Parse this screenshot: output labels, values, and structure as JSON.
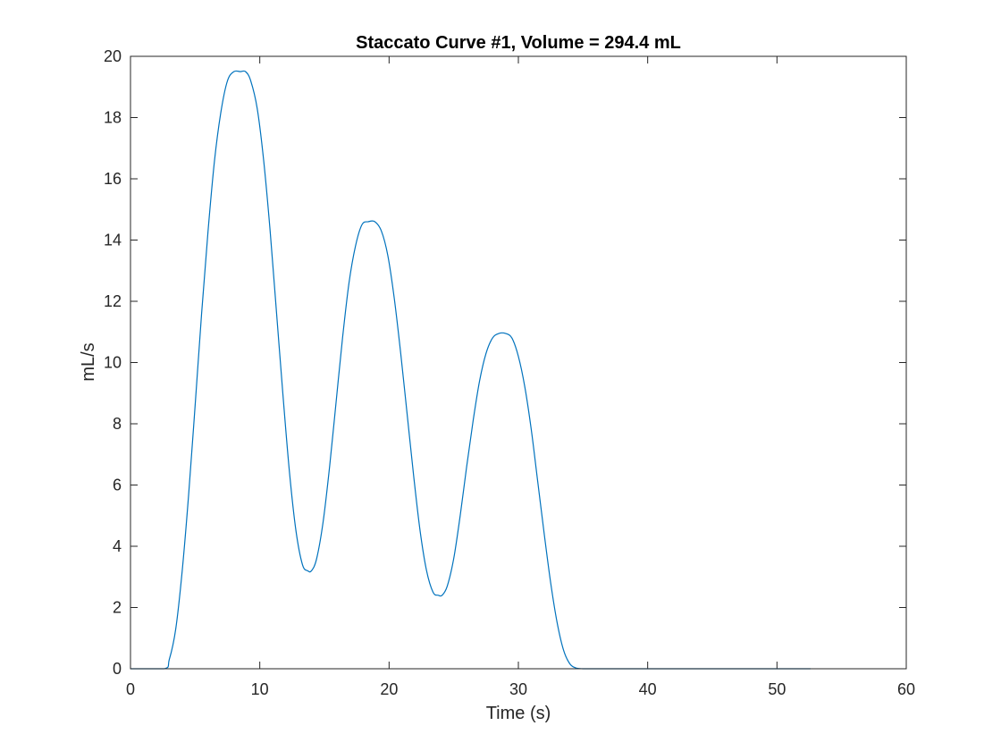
{
  "chart_data": {
    "type": "line",
    "title": "Staccato Curve #1, Volume = 294.4 mL",
    "xlabel": "Time (s)",
    "ylabel": "mL/s",
    "xlim": [
      0,
      60
    ],
    "ylim": [
      0,
      20
    ],
    "xticks": [
      "0",
      "10",
      "20",
      "30",
      "40",
      "50",
      "60"
    ],
    "yticks": [
      "0",
      "2",
      "4",
      "6",
      "8",
      "10",
      "12",
      "14",
      "16",
      "18",
      "20"
    ],
    "grid": false,
    "legend": "none",
    "line_color": "#0072bd",
    "series": [
      {
        "x": [
          0,
          2.6,
          3.0,
          3.5,
          4.0,
          4.5,
          5.0,
          5.5,
          6.0,
          6.5,
          7.0,
          7.5,
          8.0,
          8.5,
          8.9,
          9.3,
          9.8,
          10.3,
          10.8,
          11.3,
          11.8,
          12.3,
          12.8,
          13.3,
          13.7,
          14.0,
          14.4,
          14.9,
          15.4,
          15.9,
          16.4,
          16.9,
          17.4,
          17.9,
          18.4,
          18.9,
          19.4,
          19.9,
          20.4,
          20.9,
          21.4,
          21.9,
          22.4,
          22.9,
          23.4,
          23.8,
          24.1,
          24.5,
          25.0,
          25.5,
          26.0,
          26.5,
          27.0,
          27.5,
          28.0,
          28.5,
          29.0,
          29.5,
          30.0,
          30.5,
          31.0,
          31.5,
          32.0,
          32.5,
          33.0,
          33.5,
          34.0,
          34.5,
          35.0,
          36.0,
          40.0,
          45.0,
          50.0,
          52.6
        ],
        "y": [
          0,
          0,
          0.3,
          1.3,
          3.2,
          5.7,
          8.6,
          11.6,
          14.3,
          16.6,
          18.2,
          19.2,
          19.5,
          19.5,
          19.5,
          19.2,
          18.3,
          16.6,
          14.3,
          11.6,
          8.9,
          6.4,
          4.5,
          3.4,
          3.2,
          3.2,
          3.6,
          4.8,
          6.6,
          8.7,
          10.8,
          12.6,
          13.8,
          14.5,
          14.6,
          14.6,
          14.3,
          13.5,
          12.1,
          10.3,
          8.3,
          6.3,
          4.5,
          3.2,
          2.5,
          2.4,
          2.4,
          2.7,
          3.6,
          5.0,
          6.6,
          8.1,
          9.4,
          10.3,
          10.8,
          10.95,
          10.95,
          10.8,
          10.2,
          9.2,
          7.8,
          6.1,
          4.4,
          2.8,
          1.5,
          0.6,
          0.15,
          0.02,
          0,
          0,
          0,
          0,
          0,
          0
        ]
      }
    ]
  }
}
